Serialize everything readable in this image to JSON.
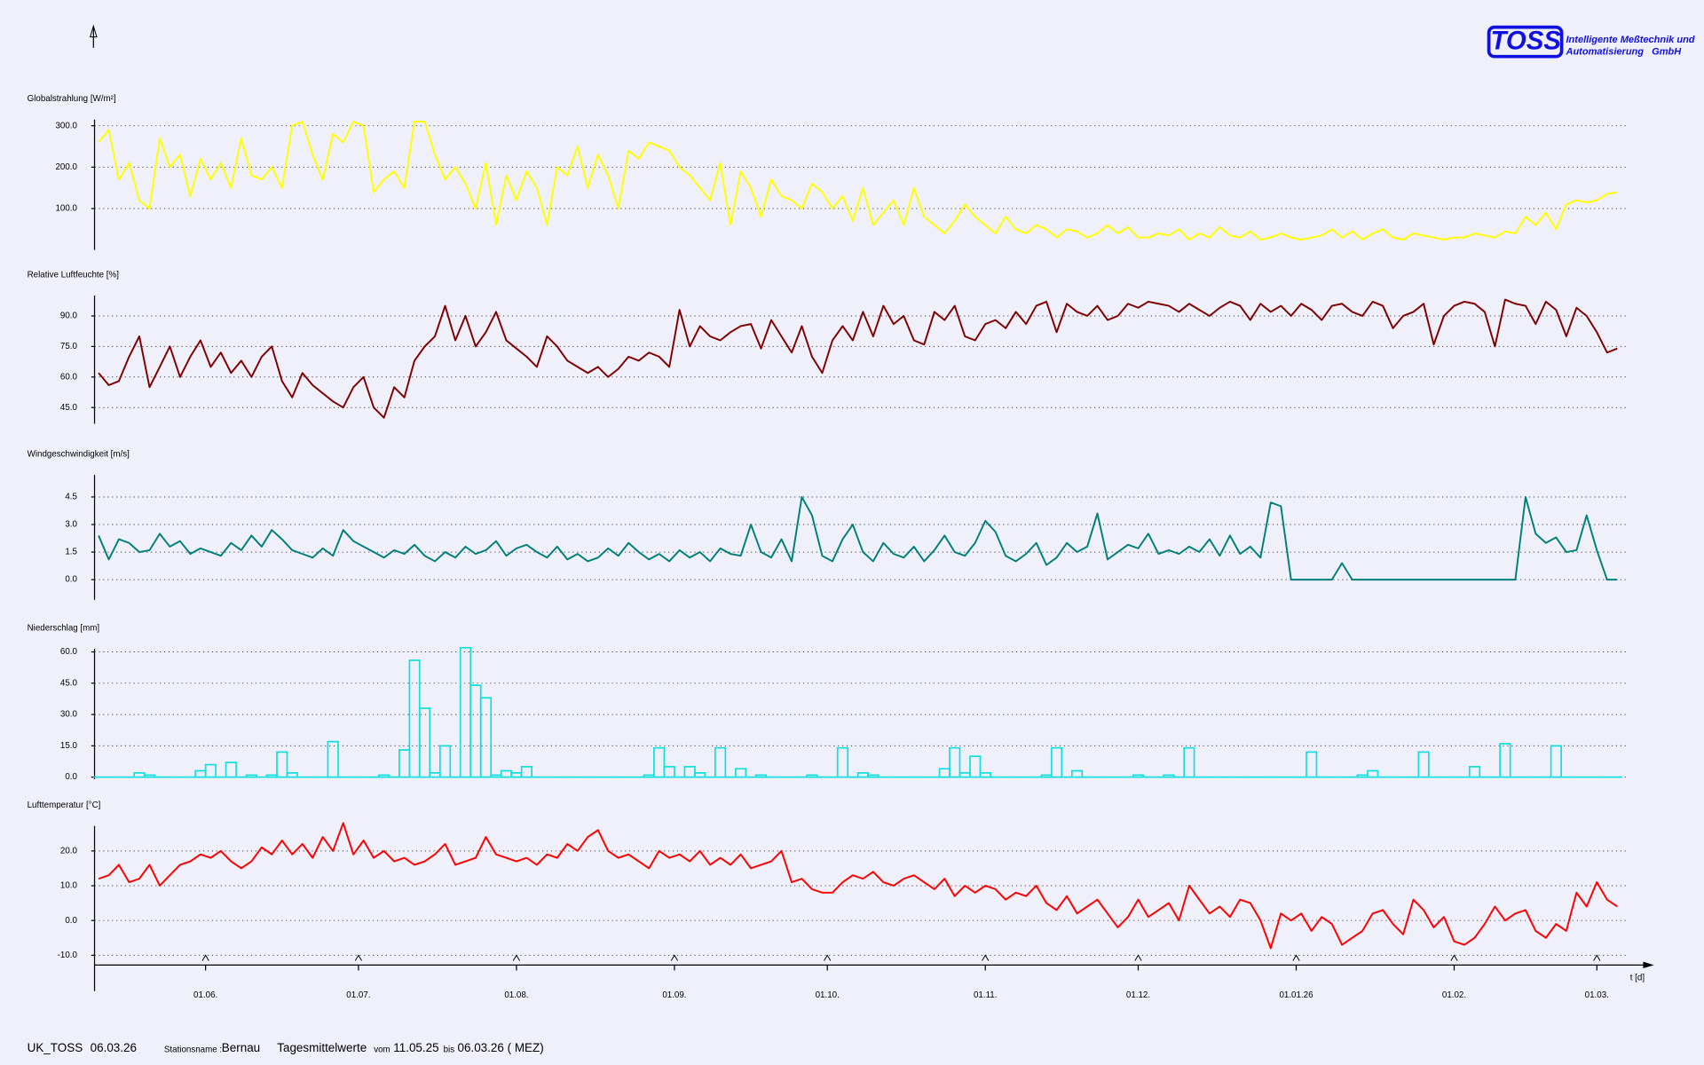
{
  "header": {
    "logo": "TOSS",
    "company": [
      "Intelligente Meßtechnik und",
      "Automatisierung   GmbH"
    ]
  },
  "footer": {
    "id": "UK_TOSS",
    "date": "06.03.26",
    "station_label": "Stationsname :",
    "station": "Bernau",
    "mode": "Tagesmittelwerte",
    "from_label": "vom",
    "from": "11.05.25",
    "to_label": "bis",
    "to": "06.03.26 ( MEZ)"
  },
  "chart_data": [
    {
      "type": "line",
      "title": "Globalstrahlung [W/m²]",
      "color": "#ffff00",
      "ylim": [
        0,
        315
      ],
      "yticks": [
        {
          "value": 100,
          "label": "100.0"
        },
        {
          "value": 200,
          "label": "200.0"
        },
        {
          "value": 300,
          "label": "300.0"
        }
      ],
      "grid": true,
      "values": [
        260,
        290,
        170,
        210,
        120,
        100,
        270,
        200,
        230,
        130,
        220,
        170,
        210,
        150,
        270,
        180,
        170,
        200,
        150,
        300,
        310,
        230,
        170,
        280,
        260,
        310,
        300,
        140,
        170,
        190,
        150,
        310,
        310,
        230,
        170,
        200,
        160,
        100,
        210,
        60,
        180,
        120,
        190,
        150,
        60,
        200,
        180,
        250,
        150,
        230,
        180,
        100,
        240,
        220,
        260,
        250,
        240,
        200,
        180,
        150,
        120,
        210,
        60,
        190,
        150,
        80,
        170,
        130,
        120,
        100,
        160,
        140,
        100,
        130,
        70,
        150,
        60,
        90,
        120,
        60,
        150,
        80,
        60,
        40,
        70,
        110,
        80,
        60,
        40,
        80,
        50,
        40,
        60,
        50,
        30,
        50,
        45,
        30,
        40,
        60,
        40,
        55,
        30,
        30,
        40,
        35,
        50,
        25,
        40,
        30,
        55,
        35,
        30,
        45,
        25,
        30,
        40,
        30,
        25,
        30,
        35,
        50,
        30,
        45,
        25,
        40,
        50,
        30,
        25,
        40,
        35,
        30,
        25,
        30,
        30,
        40,
        35,
        30,
        45,
        40,
        80,
        60,
        90,
        50,
        110,
        120,
        115,
        120,
        135,
        140
      ]
    },
    {
      "type": "line",
      "title": "Relative Luftfeuchte [%]",
      "color": "#800000",
      "ylim": [
        37,
        100
      ],
      "yticks": [
        {
          "value": 45,
          "label": "45.0"
        },
        {
          "value": 60,
          "label": "60.0"
        },
        {
          "value": 75,
          "label": "75.0"
        },
        {
          "value": 90,
          "label": "90.0"
        }
      ],
      "grid": true,
      "values": [
        62,
        56,
        58,
        70,
        80,
        55,
        65,
        75,
        60,
        70,
        78,
        65,
        72,
        62,
        68,
        60,
        70,
        75,
        58,
        50,
        62,
        56,
        52,
        48,
        45,
        55,
        60,
        45,
        40,
        55,
        50,
        68,
        75,
        80,
        95,
        78,
        90,
        75,
        82,
        92,
        78,
        74,
        70,
        65,
        80,
        75,
        68,
        65,
        62,
        65,
        60,
        64,
        70,
        68,
        72,
        70,
        65,
        93,
        75,
        85,
        80,
        78,
        82,
        85,
        86,
        74,
        88,
        80,
        72,
        85,
        70,
        62,
        78,
        85,
        78,
        92,
        80,
        95,
        86,
        90,
        78,
        76,
        92,
        88,
        95,
        80,
        78,
        86,
        88,
        84,
        92,
        86,
        95,
        97,
        82,
        96,
        92,
        90,
        95,
        88,
        90,
        96,
        94,
        97,
        96,
        95,
        92,
        96,
        93,
        90,
        94,
        97,
        95,
        88,
        96,
        92,
        95,
        90,
        96,
        93,
        88,
        95,
        96,
        92,
        90,
        97,
        95,
        84,
        90,
        92,
        96,
        76,
        90,
        95,
        97,
        96,
        92,
        75,
        98,
        96,
        95,
        86,
        97,
        93,
        80,
        94,
        90,
        82,
        72,
        74
      ]
    },
    {
      "type": "line",
      "title": "Windgeschwindigkeit [m/s]",
      "color": "#008078",
      "ylim": [
        -1.1,
        5.7
      ],
      "yticks": [
        {
          "value": 0,
          "label": "0.0"
        },
        {
          "value": 1.5,
          "label": "1.5"
        },
        {
          "value": 3,
          "label": "3.0"
        },
        {
          "value": 4.5,
          "label": "4.5"
        }
      ],
      "grid": true,
      "values": [
        2.4,
        1.1,
        2.2,
        2.0,
        1.5,
        1.6,
        2.5,
        1.8,
        2.1,
        1.4,
        1.7,
        1.5,
        1.3,
        2.0,
        1.6,
        2.4,
        1.8,
        2.7,
        2.2,
        1.6,
        1.4,
        1.2,
        1.7,
        1.3,
        2.7,
        2.1,
        1.8,
        1.5,
        1.2,
        1.6,
        1.4,
        1.9,
        1.3,
        1.0,
        1.5,
        1.2,
        1.8,
        1.4,
        1.6,
        2.1,
        1.3,
        1.7,
        1.9,
        1.5,
        1.2,
        1.8,
        1.1,
        1.4,
        1.0,
        1.2,
        1.7,
        1.3,
        2.0,
        1.5,
        1.1,
        1.4,
        1.0,
        1.6,
        1.2,
        1.5,
        1.0,
        1.7,
        1.4,
        1.3,
        3.0,
        1.5,
        1.2,
        2.2,
        1.0,
        4.5,
        3.5,
        1.3,
        1.0,
        2.2,
        3.0,
        1.5,
        1.0,
        2.0,
        1.4,
        1.2,
        1.8,
        1.0,
        1.6,
        2.4,
        1.5,
        1.3,
        2.0,
        3.2,
        2.6,
        1.3,
        1.0,
        1.4,
        2.0,
        0.8,
        1.2,
        2.0,
        1.5,
        1.8,
        3.6,
        1.1,
        1.5,
        1.9,
        1.7,
        2.5,
        1.4,
        1.6,
        1.4,
        1.8,
        1.5,
        2.2,
        1.3,
        2.4,
        1.4,
        1.8,
        1.2,
        4.2,
        4.0,
        0,
        0,
        0,
        0,
        0,
        0.9,
        0,
        0,
        0,
        0,
        0,
        0,
        0,
        0,
        0,
        0,
        0,
        0,
        0,
        0,
        0,
        0,
        0,
        4.5,
        2.5,
        2.0,
        2.3,
        1.5,
        1.6,
        3.5,
        1.6,
        0,
        0
      ]
    },
    {
      "type": "bar",
      "title": "Niederschlag [mm]",
      "color": "#10e0e0",
      "ylim": [
        -1,
        61.5
      ],
      "yticks": [
        {
          "value": 0,
          "label": "0.0"
        },
        {
          "value": 15,
          "label": "15.0"
        },
        {
          "value": 30,
          "label": "30.0"
        },
        {
          "value": 45,
          "label": "45.0"
        },
        {
          "value": 60,
          "label": "60.0"
        }
      ],
      "grid": true,
      "values": [
        0,
        0,
        0,
        0,
        2,
        1,
        0,
        0,
        0,
        0,
        3,
        6,
        0,
        7,
        0,
        1,
        0,
        1,
        12,
        2,
        0,
        0,
        0,
        17,
        0,
        0,
        0,
        0,
        1,
        0,
        13,
        56,
        33,
        2,
        15,
        0,
        62,
        44,
        38,
        1,
        3,
        2,
        5,
        0,
        0,
        0,
        0,
        0,
        0,
        0,
        0,
        0,
        0,
        0,
        1,
        14,
        5,
        0,
        5,
        2,
        0,
        14,
        0,
        4,
        0,
        1,
        0,
        0,
        0,
        0,
        1,
        0,
        0,
        14,
        0,
        2,
        1,
        0,
        0,
        0,
        0,
        0,
        0,
        4,
        14,
        2,
        10,
        2,
        0,
        0,
        0,
        0,
        0,
        1,
        14,
        0,
        3,
        0,
        0,
        0,
        0,
        0,
        1,
        0,
        0,
        1,
        0,
        14,
        0,
        0,
        0,
        0,
        0,
        0,
        0,
        0,
        0,
        0,
        0,
        12,
        0,
        0,
        0,
        0,
        1,
        3,
        0,
        0,
        0,
        0,
        12,
        0,
        0,
        0,
        0,
        5,
        0,
        0,
        16,
        0,
        0,
        0,
        0,
        15,
        0,
        0,
        0,
        0,
        0,
        0
      ]
    },
    {
      "type": "line",
      "title": "Lufttemperatur [°C]",
      "color": "#ff0000",
      "ylim": [
        -12.8,
        27.2
      ],
      "yticks": [
        {
          "value": -10,
          "label": "-10.0"
        },
        {
          "value": 0,
          "label": "0.0"
        },
        {
          "value": 10,
          "label": "10.0"
        },
        {
          "value": 20,
          "label": "20.0"
        }
      ],
      "grid": true,
      "values": [
        12,
        13,
        16,
        11,
        12,
        16,
        10,
        13,
        16,
        17,
        19,
        18,
        20,
        17,
        15,
        17,
        21,
        19,
        23,
        19,
        22,
        18,
        24,
        20,
        28,
        19,
        23,
        18,
        20,
        17,
        18,
        16,
        17,
        19,
        22,
        16,
        17,
        18,
        24,
        19,
        18,
        17,
        18,
        16,
        19,
        18,
        22,
        20,
        24,
        26,
        20,
        18,
        19,
        17,
        15,
        20,
        18,
        19,
        17,
        20,
        16,
        18,
        16,
        19,
        15,
        16,
        17,
        20,
        11,
        12,
        9,
        8,
        8,
        11,
        13,
        12,
        14,
        11,
        10,
        12,
        13,
        11,
        9,
        12,
        7,
        10,
        8,
        10,
        9,
        6,
        8,
        7,
        10,
        5,
        3,
        7,
        2,
        4,
        6,
        2,
        -2,
        1,
        6,
        1,
        3,
        5,
        0,
        10,
        6,
        2,
        4,
        1,
        6,
        5,
        0,
        -8,
        2,
        0,
        2,
        -3,
        1,
        -1,
        -7,
        -5,
        -3,
        2,
        3,
        -1,
        -4,
        6,
        3,
        -2,
        1,
        -6,
        -7,
        -5,
        -1,
        4,
        0,
        2,
        3,
        -3,
        -5,
        -1,
        -3,
        8,
        4,
        11,
        6,
        4
      ],
      "xlabel": "t [d]",
      "xlim": [
        -1,
        305
      ],
      "xticks": [
        {
          "value": 21,
          "label": "01.06."
        },
        {
          "value": 51,
          "label": "01.07."
        },
        {
          "value": 82,
          "label": "01.08."
        },
        {
          "value": 113,
          "label": "01.09."
        },
        {
          "value": 143,
          "label": "01.10."
        },
        {
          "value": 174,
          "label": "01.11."
        },
        {
          "value": 204,
          "label": "01.12."
        },
        {
          "value": 235,
          "label": "01.01.26"
        },
        {
          "value": 266,
          "label": "01.02."
        },
        {
          "value": 294,
          "label": "01.03."
        }
      ],
      "x": [
        0,
        2,
        4,
        6,
        8,
        10,
        12,
        14,
        16,
        18,
        20,
        22,
        24,
        26,
        28,
        30,
        32,
        34,
        36,
        38,
        40,
        42,
        44,
        46,
        48,
        50,
        52,
        54,
        56,
        58,
        60,
        62,
        64,
        66,
        68,
        70,
        72,
        74,
        76,
        78,
        80,
        82,
        84,
        86,
        88,
        90,
        92,
        94,
        96,
        98,
        100,
        102,
        104,
        106,
        108,
        110,
        112,
        114,
        116,
        118,
        120,
        122,
        124,
        126,
        128,
        130,
        132,
        134,
        136,
        138,
        140,
        142,
        144,
        146,
        148,
        150,
        152,
        154,
        156,
        158,
        160,
        162,
        164,
        166,
        168,
        170,
        172,
        174,
        176,
        178,
        180,
        182,
        184,
        186,
        188,
        190,
        192,
        194,
        196,
        198,
        200,
        202,
        204,
        206,
        208,
        210,
        212,
        214,
        216,
        218,
        220,
        222,
        224,
        226,
        228,
        230,
        232,
        234,
        236,
        238,
        240,
        242,
        244,
        246,
        248,
        250,
        252,
        254,
        256,
        258,
        260,
        262,
        264,
        266,
        268,
        270,
        272,
        274,
        276,
        278,
        280,
        282,
        284,
        286,
        288,
        290,
        292,
        294,
        296,
        298
      ]
    }
  ]
}
